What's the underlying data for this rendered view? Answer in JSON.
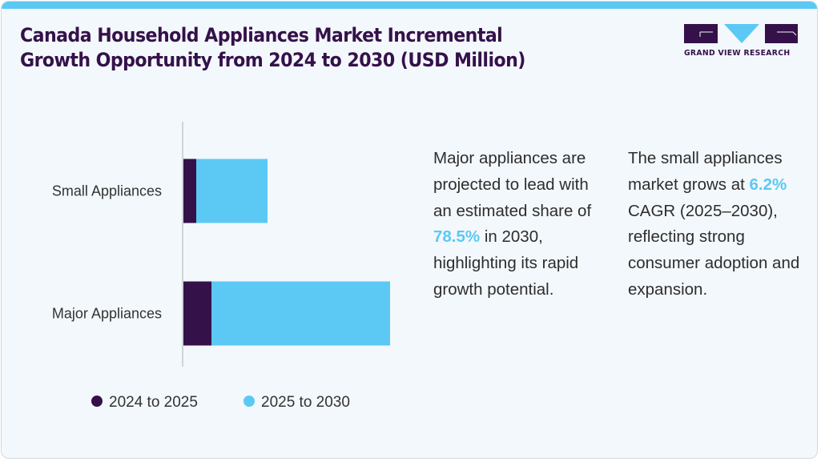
{
  "header": {
    "title_line1": "Canada Household Appliances Market Incremental",
    "title_line2": "Growth Opportunity from 2024 to 2030 (USD Million)"
  },
  "logo": {
    "text": "GRAND VIEW RESEARCH",
    "icon": "gvr-logo-icon"
  },
  "colors": {
    "accent": "#5bc9f4",
    "brand_dark": "#35114a",
    "background": "#f3f8fc"
  },
  "chart_data": {
    "type": "bar",
    "orientation": "horizontal",
    "stacked": true,
    "title": "Canada Household Appliances Market Incremental Growth Opportunity from 2024 to 2030 (USD Million)",
    "xlabel": "",
    "ylabel": "",
    "categories": [
      "Small Appliances",
      "Major Appliances"
    ],
    "series": [
      {
        "name": "2024 to 2025",
        "color": "#35114a",
        "values": [
          16,
          35
        ]
      },
      {
        "name": "2025 to 2030",
        "color": "#5bc9f4",
        "values": [
          89,
          223
        ]
      }
    ],
    "value_units": "relative (no value axis shown)",
    "xlim": [
      0,
      270
    ],
    "grid": false,
    "legend_position": "bottom"
  },
  "legend": [
    {
      "label": "2024 to 2025",
      "color": "#35114a"
    },
    {
      "label": "2025 to 2030",
      "color": "#5bc9f4"
    }
  ],
  "notes": {
    "left": {
      "before": "Major appliances are projected to lead with an estimated share of ",
      "highlight": "78.5%",
      "after": " in 2030, highlighting its rapid growth potential."
    },
    "right": {
      "before": "The small appliances market grows at ",
      "highlight": "6.2%",
      "after": " CAGR (2025–2030), reflecting strong consumer adoption and expansion."
    }
  }
}
